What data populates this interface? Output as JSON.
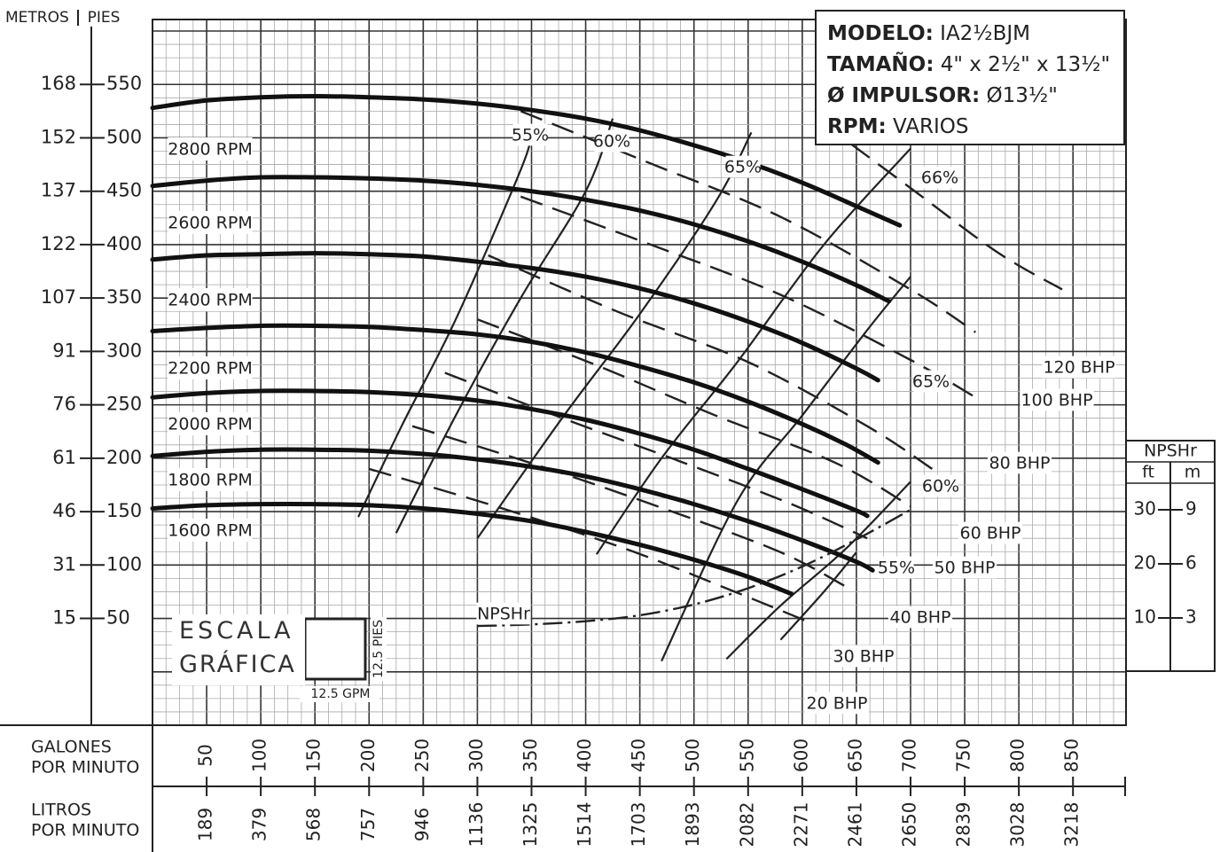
{
  "header": {
    "metros_label": "METROS",
    "pies_label": "PIES"
  },
  "info_box": {
    "modelo_label": "MODELO:",
    "modelo_value": "IA2½BJM",
    "tamano_label": "TAMAÑO:",
    "tamano_value": "4\" x 2½\" x 13½\"",
    "impulsor_label": "Ø IMPULSOR:",
    "impulsor_value": "Ø13½\"",
    "rpm_label": "RPM:",
    "rpm_value": "VARIOS"
  },
  "escala": {
    "line1": "ESCALA",
    "line2": "GRÁFICA",
    "x_label": "12.5 GPM",
    "y_label": "12.5 PIES"
  },
  "axis_titles": {
    "gpm_line1": "GALONES",
    "gpm_line2": "POR MINUTO",
    "lpm_line1": "LITROS",
    "lpm_line2": "POR MINUTO",
    "npshr": "NPSHr",
    "npshr_ft": "ft",
    "npshr_m": "m"
  },
  "chart_data": {
    "type": "line",
    "xlim": [
      0,
      900
    ],
    "ylim": [
      -50,
      600
    ],
    "x_ticks_gpm": [
      "50",
      "100",
      "150",
      "200",
      "250",
      "300",
      "350",
      "400",
      "450",
      "500",
      "550",
      "600",
      "650",
      "700",
      "750",
      "800",
      "850"
    ],
    "x_ticks_gpm_values": [
      50,
      100,
      150,
      200,
      250,
      300,
      350,
      400,
      450,
      500,
      550,
      600,
      650,
      700,
      750,
      800,
      850
    ],
    "x_ticks_lpm": [
      "189",
      "379",
      "568",
      "757",
      "946",
      "1136",
      "1325",
      "1514",
      "1703",
      "1893",
      "2082",
      "2271",
      "2461",
      "2650",
      "2839",
      "3028",
      "3218"
    ],
    "y_ticks": [
      {
        "ft": 50,
        "m_label": "15",
        "ft_label": "50"
      },
      {
        "ft": 100,
        "m_label": "31",
        "ft_label": "100"
      },
      {
        "ft": 150,
        "m_label": "46",
        "ft_label": "150"
      },
      {
        "ft": 200,
        "m_label": "61",
        "ft_label": "200"
      },
      {
        "ft": 250,
        "m_label": "76",
        "ft_label": "250"
      },
      {
        "ft": 300,
        "m_label": "91",
        "ft_label": "300"
      },
      {
        "ft": 350,
        "m_label": "107",
        "ft_label": "350"
      },
      {
        "ft": 400,
        "m_label": "122",
        "ft_label": "400"
      },
      {
        "ft": 450,
        "m_label": "137",
        "ft_label": "450"
      },
      {
        "ft": 500,
        "m_label": "152",
        "ft_label": "500"
      },
      {
        "ft": 550,
        "m_label": "168",
        "ft_label": "550"
      }
    ],
    "npshr_ticks": [
      {
        "ft": 10,
        "ft_label": "10",
        "m_label": "3"
      },
      {
        "ft": 20,
        "ft_label": "20",
        "m_label": "6"
      },
      {
        "ft": 30,
        "ft_label": "30",
        "m_label": "9"
      }
    ],
    "series": [
      {
        "name": "2800 RPM",
        "x": [
          0,
          50,
          100,
          150,
          200,
          250,
          300,
          350,
          400,
          450,
          500,
          550,
          600,
          650,
          690
        ],
        "y": [
          528,
          535,
          538,
          539,
          538,
          536,
          532,
          526,
          518,
          507,
          493,
          477,
          458,
          436,
          418
        ]
      },
      {
        "name": "2600 RPM",
        "x": [
          0,
          50,
          100,
          150,
          200,
          250,
          300,
          350,
          400,
          450,
          500,
          550,
          600,
          650,
          680
        ],
        "y": [
          455,
          460,
          463,
          463,
          462,
          460,
          456,
          450,
          442,
          432,
          419,
          403,
          384,
          362,
          347
        ]
      },
      {
        "name": "2400 RPM",
        "x": [
          0,
          50,
          100,
          150,
          200,
          250,
          300,
          350,
          400,
          450,
          500,
          550,
          600,
          650,
          670
        ],
        "y": [
          386,
          390,
          391,
          392,
          391,
          389,
          384,
          378,
          370,
          359,
          345,
          328,
          308,
          284,
          273
        ]
      },
      {
        "name": "2200 RPM",
        "x": [
          0,
          50,
          100,
          150,
          200,
          250,
          300,
          350,
          400,
          450,
          500,
          550,
          600,
          640,
          670
        ],
        "y": [
          319,
          322,
          324,
          324,
          323,
          320,
          316,
          309,
          299,
          286,
          271,
          253,
          232,
          213,
          196
        ]
      },
      {
        "name": "2000 RPM",
        "x": [
          0,
          50,
          100,
          150,
          200,
          250,
          300,
          350,
          400,
          450,
          500,
          550,
          600,
          650,
          660
        ],
        "y": [
          257,
          261,
          263,
          263,
          262,
          259,
          254,
          246,
          236,
          223,
          208,
          190,
          171,
          151,
          146
        ]
      },
      {
        "name": "1800 RPM",
        "x": [
          0,
          50,
          100,
          150,
          200,
          250,
          300,
          350,
          400,
          450,
          500,
          550,
          600,
          650,
          665
        ],
        "y": [
          202,
          206,
          208,
          208,
          207,
          204,
          199,
          192,
          183,
          171,
          157,
          141,
          123,
          103,
          95
        ]
      },
      {
        "name": "1600 RPM",
        "x": [
          0,
          50,
          100,
          150,
          200,
          250,
          300,
          350,
          400,
          450,
          500,
          550,
          590
        ],
        "y": [
          153,
          156,
          157,
          157,
          156,
          153,
          148,
          141,
          131,
          119,
          105,
          89,
          73
        ]
      }
    ],
    "efficiency": [
      {
        "label": "55%",
        "x": [
          190,
          230,
          280,
          340,
          350
        ],
        "y": [
          145,
          230,
          330,
          470,
          505
        ]
      },
      {
        "label": "60%",
        "x": [
          225,
          280,
          340,
          400,
          425
        ],
        "y": [
          130,
          240,
          350,
          450,
          518
        ]
      },
      {
        "label": "65%",
        "x": [
          300,
          380,
          450,
          520,
          553
        ],
        "y": [
          125,
          240,
          335,
          440,
          505
        ]
      },
      {
        "label": "66%",
        "x": [
          410,
          470,
          540,
          620,
          700
        ],
        "y": [
          110,
          200,
          290,
          400,
          490
        ]
      },
      {
        "label": "65%",
        "x": [
          470,
          540,
          600,
          660,
          700
        ],
        "y": [
          10,
          160,
          240,
          320,
          370
        ]
      },
      {
        "label": "60%",
        "x": [
          530,
          580,
          640,
          700
        ],
        "y": [
          12,
          62,
          115,
          178
        ]
      },
      {
        "label": "55%",
        "x": [
          580,
          620,
          650
        ],
        "y": [
          30,
          75,
          112
        ]
      }
    ],
    "bhp": [
      {
        "label": "20 BHP",
        "x": [
          200,
          320,
          440,
          540,
          610
        ],
        "y": [
          190,
          154,
          114,
          74,
          45
        ]
      },
      {
        "label": "30 BHP",
        "x": [
          240,
          360,
          480,
          580,
          640
        ],
        "y": [
          230,
          192,
          150,
          112,
          80
        ]
      },
      {
        "label": "40 BHP",
        "x": [
          270,
          380,
          490,
          590,
          660
        ],
        "y": [
          280,
          237,
          196,
          157,
          125
        ]
      },
      {
        "label": "50 BHP",
        "x": [
          300,
          410,
          520,
          630,
          700
        ],
        "y": [
          330,
          287,
          240,
          196,
          155
        ]
      },
      {
        "label": "60 BHP",
        "x": [
          310,
          430,
          550,
          660,
          720
        ],
        "y": [
          390,
          337,
          290,
          230,
          190
        ]
      },
      {
        "label": "80 BHP",
        "x": [
          340,
          460,
          580,
          700,
          760
        ],
        "y": [
          445,
          400,
          353,
          292,
          257
        ]
      },
      {
        "label": "100 BHP",
        "x": [
          340,
          460,
          580,
          700,
          760
        ],
        "y": [
          525,
          476,
          426,
          358,
          318
        ]
      },
      {
        "label": "120 BHP",
        "x": [
          620,
          700,
          780,
          840
        ],
        "y": [
          513,
          453,
          393,
          358
        ]
      }
    ],
    "npshr_curve": {
      "label": "NPSHr",
      "x": [
        300,
        350,
        400,
        450,
        500,
        550,
        600,
        650,
        700
      ],
      "y": [
        8.5,
        8.8,
        9.4,
        10.5,
        12.5,
        15.5,
        19.5,
        24.5,
        30
      ]
    }
  }
}
